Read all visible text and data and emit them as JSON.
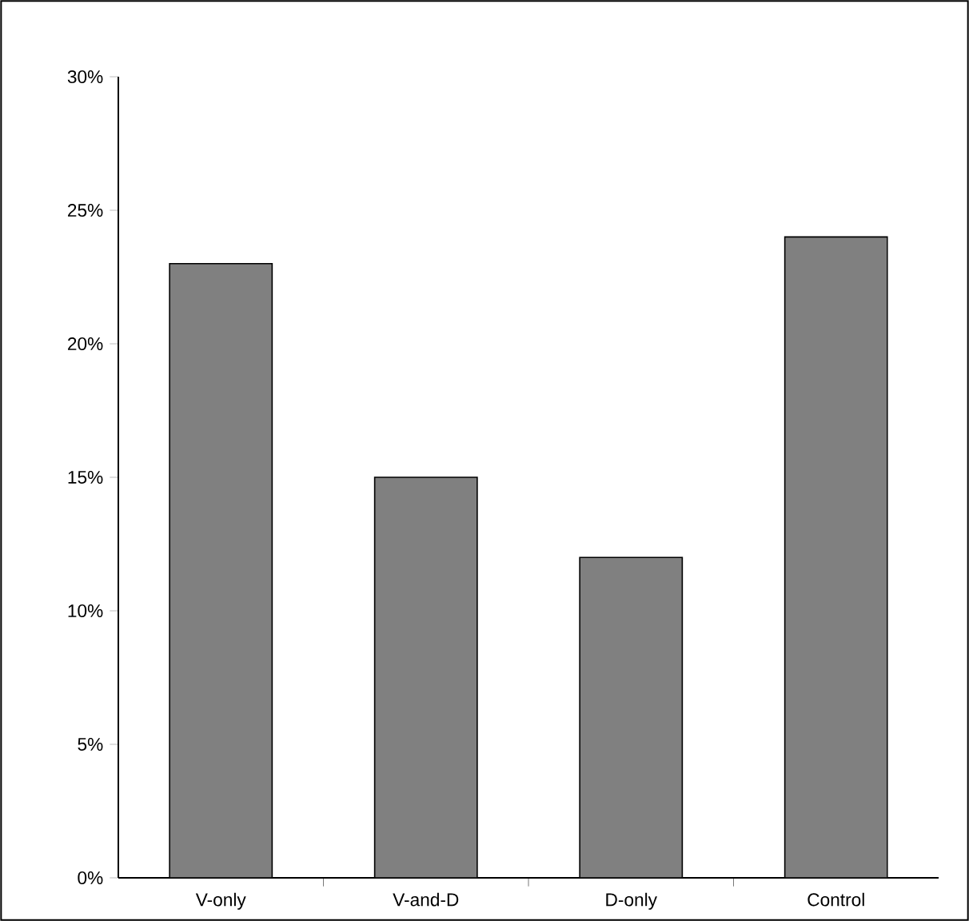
{
  "chart_data": {
    "type": "bar",
    "categories": [
      "V-only",
      "V-and-D",
      "D-only",
      "Control"
    ],
    "values": [
      23,
      15,
      12,
      24
    ],
    "color": "#808080",
    "ylim": [
      0,
      30
    ],
    "yticks": [
      {
        "value": 0,
        "label": "0%"
      },
      {
        "value": 5,
        "label": "5%"
      },
      {
        "value": 10,
        "label": "10%"
      },
      {
        "value": 15,
        "label": "15%"
      },
      {
        "value": 20,
        "label": "20%"
      },
      {
        "value": 25,
        "label": "25%"
      },
      {
        "value": 30,
        "label": "30%"
      }
    ],
    "grid": false
  }
}
